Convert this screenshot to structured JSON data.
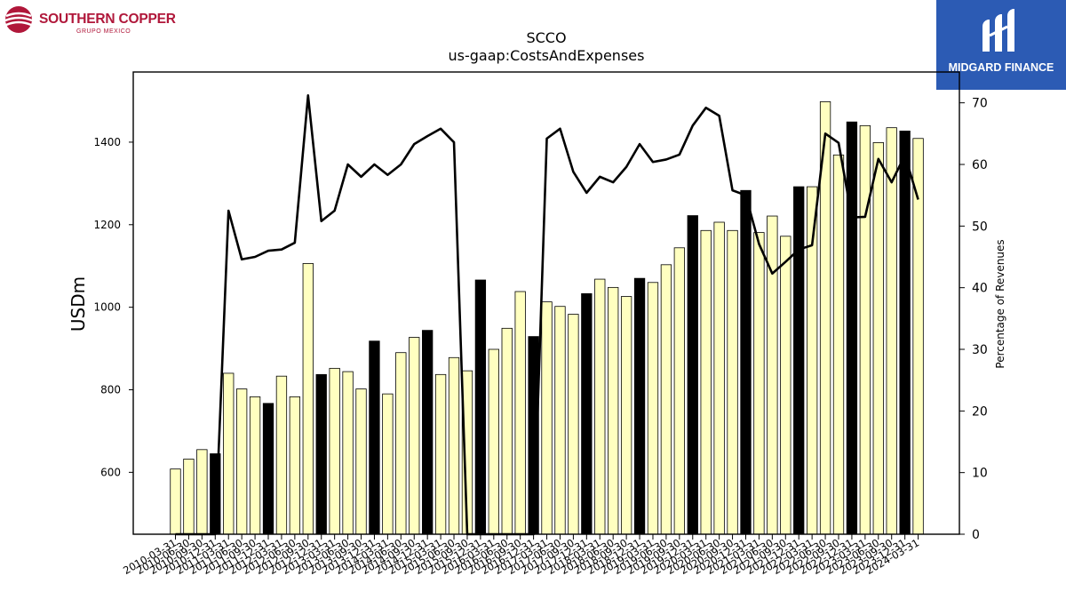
{
  "logos": {
    "left_brand": "SOUTHERN COPPER",
    "left_sub": "GRUPO MEXICO",
    "right_brand": "MIDGARD FINANCE"
  },
  "chart_data": {
    "type": "bar",
    "title": "SCCO",
    "subtitle": "us-gaap:CostsAndExpenses",
    "ylabel": "USDm",
    "y2label": "Percentage of Revenues",
    "ylim": [
      450,
      1570
    ],
    "y2lim": [
      0,
      75
    ],
    "yticks": [
      600,
      800,
      1000,
      1200,
      1400
    ],
    "y2ticks": [
      0,
      10,
      20,
      30,
      40,
      50,
      60,
      70
    ],
    "colors": {
      "bar_default": "#ffffc0",
      "bar_highlight": "#000000",
      "line": "#000000",
      "edge": "#000000"
    },
    "categories": [
      "2010-03-31",
      "2010-06-30",
      "2010-09-30",
      "2010-12-31",
      "2011-03-31",
      "2011-06-30",
      "2011-09-30",
      "2011-12-31",
      "2012-03-31",
      "2012-06-30",
      "2012-09-30",
      "2012-12-31",
      "2013-03-31",
      "2013-06-30",
      "2013-09-30",
      "2013-12-31",
      "2014-03-31",
      "2014-06-30",
      "2014-09-30",
      "2014-12-31",
      "2015-03-31",
      "2015-06-30",
      "2015-09-30",
      "2015-12-31",
      "2016-03-31",
      "2016-06-30",
      "2016-09-30",
      "2016-12-31",
      "2017-03-31",
      "2017-06-30",
      "2017-09-30",
      "2017-12-31",
      "2018-03-31",
      "2018-06-30",
      "2018-09-30",
      "2018-12-31",
      "2019-03-31",
      "2019-06-30",
      "2019-09-30",
      "2019-12-31",
      "2020-03-31",
      "2020-06-30",
      "2020-09-30",
      "2020-12-31",
      "2021-03-31",
      "2021-06-30",
      "2021-09-30",
      "2021-12-31",
      "2022-03-31",
      "2022-06-30",
      "2022-09-30",
      "2022-12-31",
      "2023-03-31",
      "2023-06-30",
      "2023-09-30",
      "2023-12-31",
      "2024-03-31"
    ],
    "series": [
      {
        "type": "bar",
        "values": [
          608,
          632,
          655,
          645,
          840,
          802,
          783,
          767,
          833,
          783,
          1106,
          837,
          852,
          844,
          802,
          918,
          790,
          890,
          927,
          944,
          837,
          878,
          846,
          1066,
          898,
          949,
          1038,
          929,
          1013,
          1002,
          983,
          1033,
          1068,
          1048,
          1026,
          1070,
          1060,
          1103,
          1144,
          1222,
          1186,
          1206,
          1186,
          1283,
          1181,
          1221,
          1172,
          1292,
          1292,
          1498,
          1369,
          1449,
          1440,
          1399,
          1435,
          1427,
          1409
        ],
        "highlight": [
          false,
          false,
          false,
          true,
          false,
          false,
          false,
          true,
          false,
          false,
          false,
          true,
          false,
          false,
          false,
          true,
          false,
          false,
          false,
          true,
          false,
          false,
          false,
          true,
          false,
          false,
          false,
          true,
          false,
          false,
          false,
          true,
          false,
          false,
          false,
          true,
          false,
          false,
          false,
          true,
          false,
          false,
          false,
          true,
          false,
          false,
          false,
          true,
          false,
          false,
          false,
          true,
          false,
          false,
          false,
          true,
          false
        ]
      },
      {
        "type": "line",
        "axis": "right",
        "values": [
          0,
          0,
          0,
          0,
          52.5,
          44.6,
          45,
          46,
          46.2,
          47.3,
          71.2,
          50.8,
          52.5,
          60,
          58,
          60,
          58.3,
          60,
          63.3,
          64.6,
          65.8,
          63.6,
          0,
          0,
          0,
          0,
          0,
          0,
          64.2,
          65.8,
          58.8,
          55.4,
          58,
          57.1,
          59.6,
          63.3,
          60.4,
          60.8,
          61.6,
          66.3,
          69.2,
          67.9,
          55.8,
          55,
          47.1,
          42.3,
          44.2,
          46.2,
          46.9,
          65,
          63.5,
          51.4,
          51.5,
          60.9,
          57.1,
          61.5,
          54.3
        ]
      }
    ]
  }
}
